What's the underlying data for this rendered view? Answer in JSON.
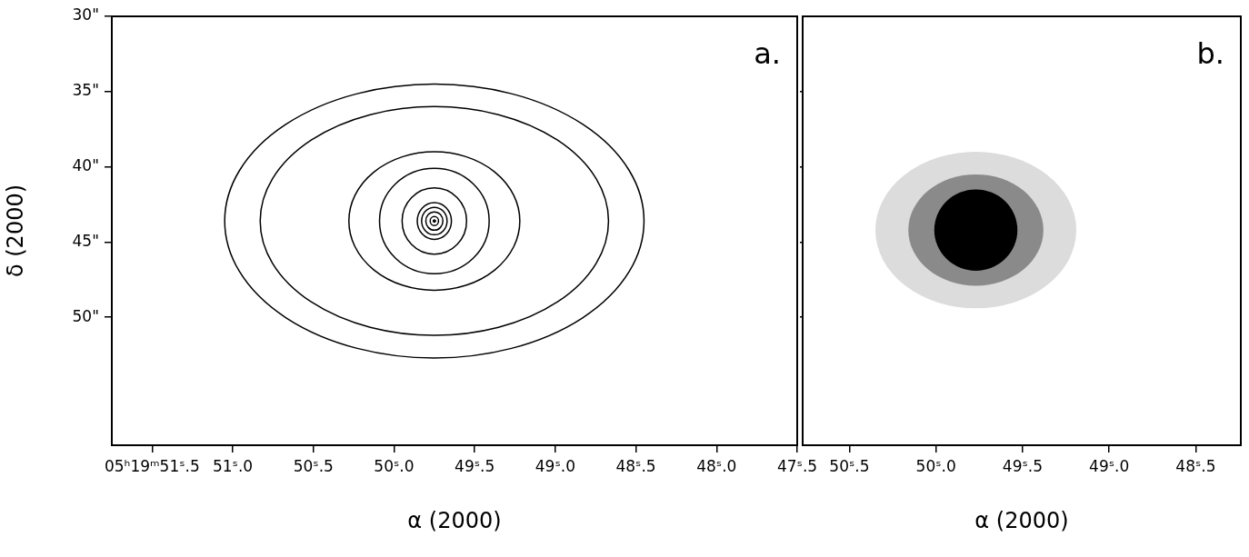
{
  "chart_data": [
    {
      "type": "contour",
      "panel_label": "a.",
      "xlabel": "α (2000)",
      "ylabel": "δ (2000)",
      "xlim": [
        51.75,
        47.5
      ],
      "xticks": [
        {
          "value": 51.5,
          "label": "05ʰ19ᵐ51ˢ.5"
        },
        {
          "value": 51.0,
          "label": "51ˢ.0"
        },
        {
          "value": 50.5,
          "label": "50ˢ.5"
        },
        {
          "value": 50.0,
          "label": "50ˢ.0"
        },
        {
          "value": 49.5,
          "label": "49ˢ.5"
        },
        {
          "value": 49.0,
          "label": "49ˢ.0"
        },
        {
          "value": 48.5,
          "label": "48ˢ.5"
        },
        {
          "value": 48.0,
          "label": "48ˢ.0"
        },
        {
          "value": 47.5,
          "label": "47ˢ.5"
        }
      ],
      "ylim": [
        58.5,
        30
      ],
      "yticks": [
        {
          "value": 30,
          "label": "30\""
        },
        {
          "value": 35,
          "label": "35\""
        },
        {
          "value": 40,
          "label": "40\""
        },
        {
          "value": 45,
          "label": "45\""
        },
        {
          "value": 50,
          "label": "50\""
        }
      ],
      "grid": false,
      "color": "#000000",
      "center": {
        "ra": 49.75,
        "dec": 43.6
      },
      "contours": [
        {
          "ra_radius": 0.026,
          "dec_radius": 0.3
        },
        {
          "ra_radius": 0.053,
          "dec_radius": 0.61
        },
        {
          "ra_radius": 0.079,
          "dec_radius": 0.91
        },
        {
          "ra_radius": 0.106,
          "dec_radius": 1.22
        },
        {
          "ra_radius": 0.2,
          "dec_radius": 2.2
        },
        {
          "ra_radius": 0.34,
          "dec_radius": 3.5
        },
        {
          "ra_radius": 0.53,
          "dec_radius": 4.6
        },
        {
          "ra_radius": 1.08,
          "dec_radius": 7.6
        },
        {
          "ra_radius": 1.3,
          "dec_radius": 9.1
        }
      ]
    },
    {
      "type": "image",
      "panel_label": "b.",
      "xlabel": "α (2000)",
      "xlim": [
        50.77,
        48.24
      ],
      "xticks": [
        {
          "value": 50.5,
          "label": "50ˢ.5"
        },
        {
          "value": 50.0,
          "label": "50ˢ.0"
        },
        {
          "value": 49.5,
          "label": "49ˢ.5"
        },
        {
          "value": 49.0,
          "label": "49ˢ.0"
        },
        {
          "value": 48.5,
          "label": "48ˢ.5"
        }
      ],
      "ylim": [
        58.5,
        30
      ],
      "yticks": [
        35,
        40,
        45,
        50
      ],
      "tick_labels": "x",
      "grid": false,
      "center": {
        "ra": 49.77,
        "dec": 44.2
      },
      "features": [
        {
          "ra_radius": 0.58,
          "dec_radius": 5.2,
          "color": "#dcdcdc"
        },
        {
          "ra_radius": 0.39,
          "dec_radius": 3.7,
          "color": "#8a8a8a"
        },
        {
          "ra_radius": 0.24,
          "dec_radius": 2.7,
          "color": "#000000"
        }
      ]
    }
  ]
}
